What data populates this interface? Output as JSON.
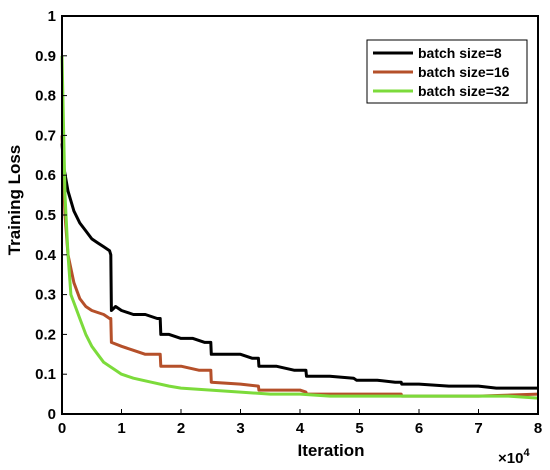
{
  "chart_data": {
    "type": "line",
    "xlabel": "Iteration",
    "ylabel": "Training Loss",
    "x_multiplier_label": "×10",
    "x_multiplier_exp": "4",
    "xlim": [
      0,
      8
    ],
    "ylim": [
      0,
      1.0
    ],
    "x_ticks": [
      0,
      1,
      2,
      3,
      4,
      5,
      6,
      7,
      8
    ],
    "y_ticks": [
      0,
      0.1,
      0.2,
      0.3,
      0.4,
      0.5,
      0.6,
      0.7,
      0.8,
      0.9,
      1
    ],
    "x_tick_labels": [
      "0",
      "1",
      "2",
      "3",
      "4",
      "5",
      "6",
      "7",
      "8"
    ],
    "y_tick_labels": [
      "0",
      "0.1",
      "0.2",
      "0.3",
      "0.4",
      "0.5",
      "0.6",
      "0.7",
      "0.8",
      "0.9",
      "1"
    ],
    "grid": false,
    "legend_position": "top-right",
    "series": [
      {
        "name": "batch size=8",
        "color": "#000000",
        "x": [
          0,
          0.03,
          0.1,
          0.2,
          0.3,
          0.4,
          0.5,
          0.6,
          0.7,
          0.8,
          0.82,
          0.83,
          0.9,
          1.0,
          1.2,
          1.4,
          1.6,
          1.65,
          1.66,
          1.8,
          2.0,
          2.2,
          2.4,
          2.5,
          2.51,
          2.8,
          3.0,
          3.2,
          3.3,
          3.31,
          3.6,
          3.9,
          4.0,
          4.1,
          4.11,
          4.5,
          4.9,
          4.95,
          5.0,
          5.3,
          5.6,
          5.7,
          5.71,
          6.0,
          6.5,
          7.0,
          7.3,
          7.5,
          8.0
        ],
        "y": [
          0.68,
          0.62,
          0.56,
          0.51,
          0.48,
          0.46,
          0.44,
          0.43,
          0.42,
          0.41,
          0.4,
          0.26,
          0.27,
          0.26,
          0.25,
          0.25,
          0.24,
          0.24,
          0.2,
          0.2,
          0.19,
          0.19,
          0.18,
          0.18,
          0.15,
          0.15,
          0.15,
          0.14,
          0.14,
          0.12,
          0.12,
          0.11,
          0.11,
          0.11,
          0.095,
          0.095,
          0.09,
          0.085,
          0.085,
          0.085,
          0.08,
          0.08,
          0.075,
          0.075,
          0.07,
          0.07,
          0.065,
          0.065,
          0.065
        ]
      },
      {
        "name": "batch size=16",
        "color": "#b5502a",
        "x": [
          0,
          0.05,
          0.1,
          0.2,
          0.3,
          0.4,
          0.5,
          0.6,
          0.7,
          0.8,
          0.82,
          0.83,
          1.0,
          1.2,
          1.4,
          1.6,
          1.65,
          1.66,
          2.0,
          2.3,
          2.5,
          2.51,
          3.0,
          3.3,
          3.31,
          4.0,
          4.1,
          4.11,
          5.0,
          5.7,
          5.71,
          6.5,
          7.0,
          8.0
        ],
        "y": [
          0.7,
          0.5,
          0.4,
          0.33,
          0.29,
          0.27,
          0.26,
          0.255,
          0.25,
          0.24,
          0.24,
          0.18,
          0.17,
          0.16,
          0.15,
          0.15,
          0.15,
          0.12,
          0.12,
          0.11,
          0.11,
          0.08,
          0.075,
          0.07,
          0.06,
          0.06,
          0.055,
          0.05,
          0.05,
          0.05,
          0.045,
          0.045,
          0.045,
          0.05
        ]
      },
      {
        "name": "batch size=32",
        "color": "#7cdb3b",
        "x": [
          0,
          0.05,
          0.1,
          0.15,
          0.2,
          0.3,
          0.4,
          0.5,
          0.6,
          0.7,
          0.8,
          0.9,
          1.0,
          1.2,
          1.5,
          1.8,
          2.0,
          2.5,
          3.0,
          3.5,
          4.0,
          4.5,
          5.0,
          5.5,
          6.0,
          6.5,
          7.0,
          7.5,
          8.0
        ],
        "y": [
          0.9,
          0.55,
          0.4,
          0.3,
          0.28,
          0.24,
          0.2,
          0.17,
          0.15,
          0.13,
          0.12,
          0.11,
          0.1,
          0.09,
          0.08,
          0.07,
          0.065,
          0.06,
          0.055,
          0.05,
          0.05,
          0.045,
          0.045,
          0.045,
          0.045,
          0.045,
          0.045,
          0.045,
          0.04
        ]
      }
    ]
  }
}
